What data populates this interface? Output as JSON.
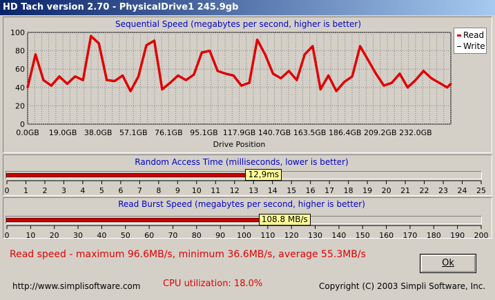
{
  "window": {
    "title": "HD Tach version 2.70 - PhysicalDrive1 245.9gb"
  },
  "colors": {
    "read": "#e00000",
    "write": "#000000",
    "chart_title": "#0000c8",
    "bar_value_bg": "#ffff99"
  },
  "legend": {
    "read_label": "Read",
    "write_label": "Write"
  },
  "chart_data": [
    {
      "type": "line",
      "title": "Sequential Speed (megabytes per second, higher is better)",
      "xlabel": "Drive Position",
      "ylabel": "",
      "ylim": [
        0,
        100
      ],
      "yticks": [
        "0",
        "20",
        "40",
        "60",
        "80",
        "100"
      ],
      "xticks": [
        "0.0GB",
        "19.0GB",
        "38.0GB",
        "57.1GB",
        "76.1GB",
        "95.1GB",
        "117.9GB",
        "140.7GB",
        "163.5GB",
        "186.4GB",
        "209.2GB",
        "232.0GB"
      ],
      "xlim_gb": [
        0,
        245.9
      ],
      "grid": true,
      "legend_position": "top-right",
      "series": [
        {
          "name": "Read",
          "x": [
            0,
            4.6,
            9.2,
            13.8,
            18.4,
            23.0,
            27.6,
            32.2,
            36.8,
            41.4,
            46.0,
            50.6,
            55.2,
            59.8,
            64.4,
            69.0,
            73.6,
            78.2,
            82.8,
            87.4,
            92.0,
            96.6,
            101.2,
            105.8,
            110.4,
            115.0,
            119.6,
            124.2,
            128.8,
            133.4,
            138.0,
            142.6,
            147.2,
            151.8,
            156.4,
            161.0,
            165.6,
            170.2,
            174.8,
            179.4,
            184.0,
            188.6,
            193.2,
            197.8,
            202.4,
            207.0,
            211.6,
            216.2,
            220.8,
            225.4,
            230.0,
            234.6,
            239.2,
            243.8,
            245.9
          ],
          "values": [
            40,
            76,
            48,
            42,
            52,
            44,
            52,
            48,
            96,
            88,
            48,
            47,
            53,
            36,
            52,
            86,
            91,
            38,
            45,
            53,
            48,
            54,
            78,
            80,
            58,
            55,
            53,
            42,
            45,
            92,
            76,
            55,
            50,
            58,
            48,
            76,
            85,
            38,
            53,
            36,
            46,
            52,
            85,
            70,
            55,
            42,
            45,
            55,
            40,
            48,
            58,
            50,
            45,
            40,
            44
          ]
        }
      ]
    },
    {
      "type": "bar",
      "title": "Random Access Time (milliseconds, lower is better)",
      "xlim": [
        0,
        25
      ],
      "ticks": [
        "0",
        "1",
        "2",
        "3",
        "4",
        "5",
        "6",
        "7",
        "8",
        "9",
        "10",
        "11",
        "12",
        "13",
        "14",
        "15",
        "16",
        "17",
        "18",
        "19",
        "20",
        "21",
        "22",
        "23",
        "24",
        "25"
      ],
      "value": 12.9,
      "value_label": "12,9ms"
    },
    {
      "type": "bar",
      "title": "Read Burst Speed (megabytes per second, higher is better)",
      "xlim": [
        0,
        200
      ],
      "ticks": [
        "0",
        "10",
        "20",
        "30",
        "40",
        "50",
        "60",
        "70",
        "80",
        "90",
        "100",
        "110",
        "120",
        "130",
        "140",
        "150",
        "160",
        "170",
        "180",
        "190",
        "200"
      ],
      "value": 108.8,
      "value_label": "108.8 MB/s"
    }
  ],
  "summary": {
    "read_speed": "Read speed - maximum 96.6MB/s, minimum 36.6MB/s, average 55.3MB/s",
    "cpu": "CPU utilization: 18.0%",
    "url": "http://www.simplisoftware.com",
    "copyright": "Copyright (C) 2003 Simpli Software, Inc."
  },
  "buttons": {
    "ok_label": "Ok"
  }
}
